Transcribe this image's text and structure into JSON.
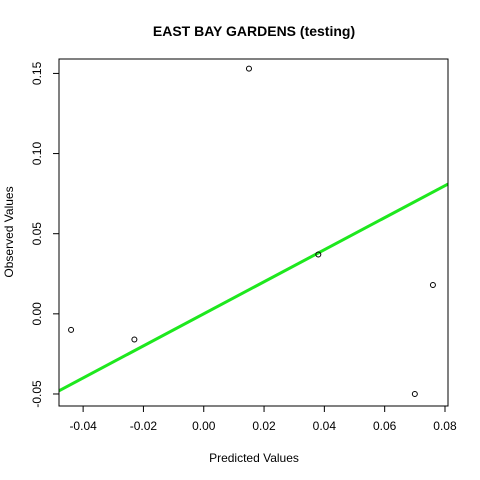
{
  "chart_data": {
    "type": "scatter",
    "title": "EAST BAY GARDENS (testing)",
    "xlabel": "Predicted Values",
    "ylabel": "Observed Values",
    "xlim": [
      -0.048,
      0.081
    ],
    "ylim": [
      -0.0575,
      0.159
    ],
    "x_ticks": [
      -0.04,
      -0.02,
      0.0,
      0.02,
      0.04,
      0.06,
      0.08
    ],
    "x_tick_labels": [
      "-0.04",
      "-0.02",
      "0.00",
      "0.02",
      "0.04",
      "0.06",
      "0.08"
    ],
    "y_ticks": [
      -0.05,
      0.0,
      0.05,
      0.1,
      0.15
    ],
    "y_tick_labels": [
      "-0.05",
      "0.00",
      "0.05",
      "0.10",
      "0.15"
    ],
    "points": [
      {
        "x": -0.044,
        "y": -0.01
      },
      {
        "x": -0.023,
        "y": -0.016
      },
      {
        "x": 0.015,
        "y": 0.153
      },
      {
        "x": 0.038,
        "y": 0.037
      },
      {
        "x": 0.07,
        "y": -0.05
      },
      {
        "x": 0.076,
        "y": 0.018
      }
    ],
    "fit_line": {
      "slope": 1.0,
      "intercept": 0.0,
      "color": "#1ee81e"
    },
    "grid": false,
    "legend": "none"
  }
}
